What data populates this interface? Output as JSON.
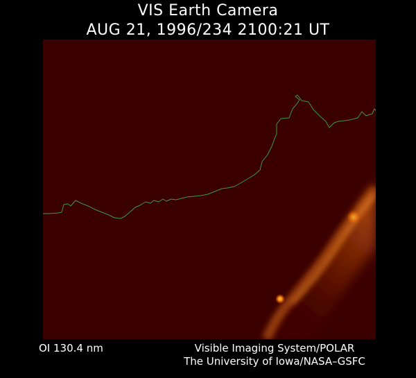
{
  "title": {
    "line1": "VIS Earth Camera",
    "line2": "AUG 21, 1996/234 2100:21 UT"
  },
  "image": {
    "filter_label": "OI  130.4 nm",
    "background_color": "#3a0000",
    "coastline_color": "#3f9a3f",
    "aurora_color": "#ff8c1a"
  },
  "credits": {
    "line1": "Visible Imaging System/POLAR",
    "line2": "The University of Iowa/NASA–GSFC"
  }
}
